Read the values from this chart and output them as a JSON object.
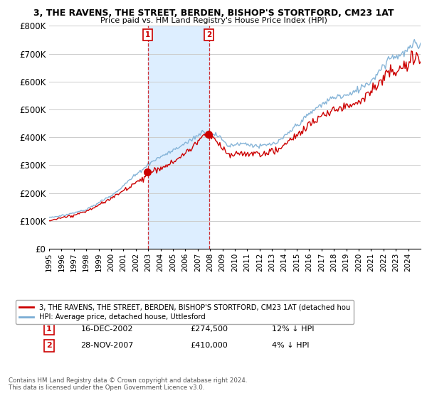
{
  "title": "3, THE RAVENS, THE STREET, BERDEN, BISHOP'S STORTFORD, CM23 1AT",
  "subtitle": "Price paid vs. HM Land Registry's House Price Index (HPI)",
  "ylim": [
    0,
    800000
  ],
  "yticks": [
    0,
    100000,
    200000,
    300000,
    400000,
    500000,
    600000,
    700000,
    800000
  ],
  "ytick_labels": [
    "£0",
    "£100K",
    "£200K",
    "£300K",
    "£400K",
    "£500K",
    "£600K",
    "£700K",
    "£800K"
  ],
  "legend_line1": "3, THE RAVENS, THE STREET, BERDEN, BISHOP'S STORTFORD, CM23 1AT (detached hou",
  "legend_line2": "HPI: Average price, detached house, Uttlesford",
  "transaction1_date": "16-DEC-2002",
  "transaction1_price": "£274,500",
  "transaction1_hpi": "12% ↓ HPI",
  "transaction2_date": "28-NOV-2007",
  "transaction2_price": "£410,000",
  "transaction2_hpi": "4% ↓ HPI",
  "footnote": "Contains HM Land Registry data © Crown copyright and database right 2024.\nThis data is licensed under the Open Government Licence v3.0.",
  "red_color": "#cc0000",
  "blue_color": "#7aadd4",
  "shade_color": "#ddeeff",
  "grid_color": "#cccccc",
  "bg_color": "#ffffff",
  "vline_color": "#cc0000",
  "t1_year": 2002.96,
  "t2_year": 2007.91,
  "t1_price": 274500,
  "t2_price": 410000
}
